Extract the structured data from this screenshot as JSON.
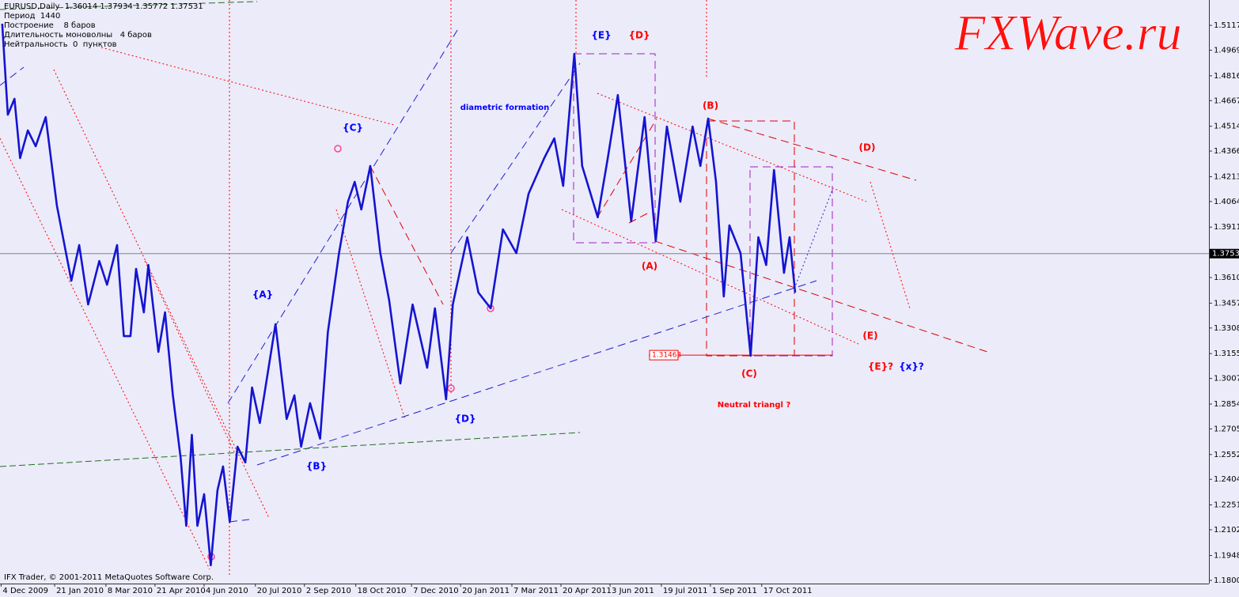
{
  "chart_data": {
    "type": "line",
    "title": "EURUSD,Daily  1.36014 1.37934 1.35772 1.37531",
    "info_lines": [
      "Период  1440",
      "Построение    8 баров",
      "Длительность моноволны   4 баров",
      "Нейтральность  0  пунктов"
    ],
    "x": [
      "2009-12-05",
      "2009-12-10",
      "2009-12-16",
      "2009-12-21",
      "2009-12-28",
      "2010-01-04",
      "2010-01-13",
      "2010-01-23",
      "2010-02-05",
      "2010-02-12",
      "2010-02-20",
      "2010-03-02",
      "2010-03-09",
      "2010-03-18",
      "2010-03-24",
      "2010-03-30",
      "2010-04-04",
      "2010-04-11",
      "2010-04-15",
      "2010-04-24",
      "2010-04-30",
      "2010-05-07",
      "2010-05-14",
      "2010-05-19",
      "2010-05-24",
      "2010-05-29",
      "2010-06-04",
      "2010-06-10",
      "2010-06-16",
      "2010-06-21",
      "2010-06-27",
      "2010-07-04",
      "2010-07-11",
      "2010-07-17",
      "2010-07-24",
      "2010-08-07",
      "2010-08-17",
      "2010-08-24",
      "2010-08-30",
      "2010-09-07",
      "2010-09-16",
      "2010-09-23",
      "2010-10-03",
      "2010-10-11",
      "2010-10-17",
      "2010-10-23",
      "2010-10-31",
      "2010-11-09",
      "2010-11-17",
      "2010-11-27",
      "2010-12-08",
      "2010-12-21",
      "2010-12-28",
      "2011-01-07",
      "2011-01-13",
      "2011-01-26",
      "2011-02-05",
      "2011-02-16",
      "2011-02-27",
      "2011-03-11",
      "2011-03-22",
      "2011-04-05",
      "2011-04-14",
      "2011-04-22",
      "2011-05-02",
      "2011-05-09",
      "2011-05-23",
      "2011-06-01",
      "2011-06-10",
      "2011-06-22",
      "2011-07-04",
      "2011-07-14",
      "2011-07-24",
      "2011-08-05",
      "2011-08-16",
      "2011-08-23",
      "2011-08-30",
      "2011-09-06",
      "2011-09-13",
      "2011-09-18",
      "2011-09-28",
      "2011-10-07",
      "2011-10-14",
      "2011-10-21",
      "2011-10-28",
      "2011-11-06",
      "2011-11-11",
      "2011-11-16"
    ],
    "series": [
      {
        "color": "#1414d2",
        "values": [
          1.5127,
          1.4583,
          1.4678,
          1.4324,
          1.4489,
          1.4395,
          1.4569,
          1.404,
          1.3591,
          1.3804,
          1.3449,
          1.3709,
          1.3567,
          1.3804,
          1.326,
          1.326,
          1.3662,
          1.3402,
          1.3685,
          1.3166,
          1.3402,
          1.2906,
          1.2528,
          1.2126,
          1.267,
          1.2126,
          1.2315,
          1.189,
          1.2339,
          1.2481,
          1.2149,
          1.2599,
          1.2505,
          1.2953,
          1.2741,
          1.3331,
          1.2765,
          1.2906,
          1.2599,
          1.2859,
          1.2647,
          1.3284,
          1.3756,
          1.4064,
          1.4182,
          1.4017,
          1.4277,
          1.3756,
          1.3473,
          1.2977,
          1.3449,
          1.3071,
          1.3426,
          1.2882,
          1.3449,
          1.3851,
          1.352,
          1.3426,
          1.3898,
          1.3756,
          1.4111,
          1.4324,
          1.4442,
          1.4158,
          1.4947,
          1.4277,
          1.397,
          1.4324,
          1.4701,
          1.3946,
          1.4569,
          1.3828,
          1.4513,
          1.4064,
          1.4513,
          1.4277,
          1.456,
          1.4182,
          1.3497,
          1.3922,
          1.3756,
          1.3142,
          1.3851,
          1.3685,
          1.4253,
          1.3638,
          1.3851,
          1.352
        ]
      }
    ],
    "xlim": [
      "2009-12-03",
      "2012-11-21"
    ],
    "xticks": [
      {
        "value": "2009-12-04",
        "label": "4 Dec 2009"
      },
      {
        "value": "2010-01-21",
        "label": "21 Jan 2010"
      },
      {
        "value": "2010-03-08",
        "label": "8 Mar 2010"
      },
      {
        "value": "2010-04-21",
        "label": "21 Apr 2010"
      },
      {
        "value": "2010-06-04",
        "label": "4 Jun 2010"
      },
      {
        "value": "2010-07-20",
        "label": "20 Jul 2010"
      },
      {
        "value": "2010-09-02",
        "label": "2 Sep 2010"
      },
      {
        "value": "2010-10-18",
        "label": "18 Oct 2010"
      },
      {
        "value": "2010-12-07",
        "label": "7 Dec 2010"
      },
      {
        "value": "2011-01-20",
        "label": "20 Jan 2011"
      },
      {
        "value": "2011-03-07",
        "label": "7 Mar 2011"
      },
      {
        "value": "2011-04-20",
        "label": "20 Apr 2011"
      },
      {
        "value": "2011-06-03",
        "label": "3 Jun 2011"
      },
      {
        "value": "2011-07-19",
        "label": "19 Jul 2011"
      },
      {
        "value": "2011-09-01",
        "label": "1 Sep 2011"
      },
      {
        "value": "2011-10-17",
        "label": "17 Oct 2011"
      }
    ],
    "ylim": [
      1.1781,
      1.5269
    ],
    "yticks": [
      {
        "value": 1.18,
        "label": "1.18000"
      },
      {
        "value": 1.19485,
        "label": "1.19485"
      },
      {
        "value": 1.21025,
        "label": "1.21025"
      },
      {
        "value": 1.2251,
        "label": "1.22510"
      },
      {
        "value": 1.2404,
        "label": "1.24040"
      },
      {
        "value": 1.25525,
        "label": "1.25525"
      },
      {
        "value": 1.27055,
        "label": "1.27055"
      },
      {
        "value": 1.2854,
        "label": "1.28540"
      },
      {
        "value": 1.3007,
        "label": "1.30070"
      },
      {
        "value": 1.31555,
        "label": "1.31555"
      },
      {
        "value": 1.33085,
        "label": "1.33085"
      },
      {
        "value": 1.3457,
        "label": "1.34570"
      },
      {
        "value": 1.361,
        "label": "1.36100"
      },
      {
        "value": 1.39115,
        "label": "1.39115"
      },
      {
        "value": 1.40645,
        "label": "1.40645"
      },
      {
        "value": 1.4213,
        "label": "1.42130"
      },
      {
        "value": 1.4366,
        "label": "1.43660"
      },
      {
        "value": 1.45145,
        "label": "1.45145"
      },
      {
        "value": 1.46675,
        "label": "1.46675"
      },
      {
        "value": 1.4816,
        "label": "1.48160"
      },
      {
        "value": 1.4969,
        "label": "1.49690"
      },
      {
        "value": 1.51175,
        "label": "1.51175"
      }
    ],
    "grid": false,
    "current_price": 1.37531,
    "level": 1.31463,
    "annotations": [
      {
        "text": "{E}",
        "color": "#0000ff"
      },
      {
        "text": "{D}",
        "color": "#ff0000"
      },
      {
        "text": "(B)",
        "color": "#ff0000"
      },
      {
        "text": "(D)",
        "color": "#ff0000"
      },
      {
        "text": "diametric formation",
        "color": "#0000ff"
      },
      {
        "text": "{C}",
        "color": "#0000ff"
      },
      {
        "text": "{A}",
        "color": "#0000ff"
      },
      {
        "text": "(A)",
        "color": "#ff0000"
      },
      {
        "text": "(E)",
        "color": "#ff0000"
      },
      {
        "text": "(C)",
        "color": "#ff0000"
      },
      {
        "text": "{E}?",
        "color": "#ff0000"
      },
      {
        "text": "{x}?",
        "color": "#0000ff"
      },
      {
        "text": "{D}",
        "color": "#0000ff"
      },
      {
        "text": "{B}",
        "color": "#0000ff"
      },
      {
        "text": "Neutral triangl ?",
        "color": "#ff0000"
      }
    ],
    "footer": "IFX Trader, © 2001-2011 MetaQuotes Software Corp.",
    "watermark": {
      "text": "FXWave.ru",
      "color": "#ff1010"
    }
  }
}
